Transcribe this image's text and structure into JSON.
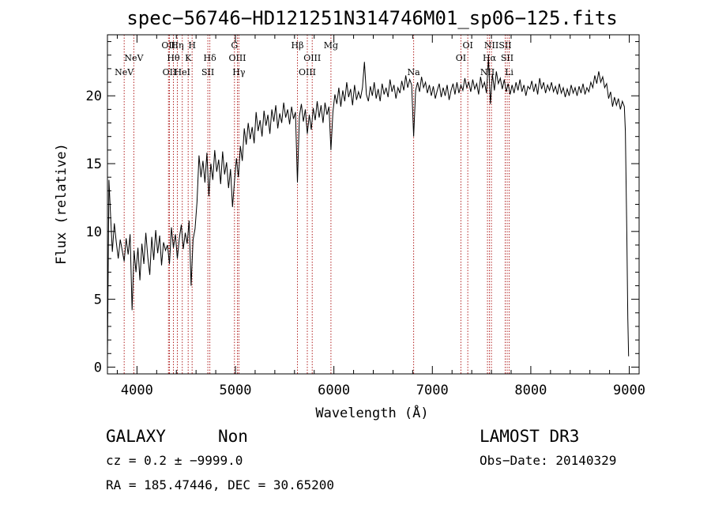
{
  "chart_data": {
    "type": "line",
    "title": "spec−56746−HD121251N314746M01_sp06−125.fits",
    "xlabel": "Wavelength (Å)",
    "ylabel": "Flux (relative)",
    "xlim": [
      3700,
      9100
    ],
    "ylim": [
      -0.5,
      24.5
    ],
    "xticks": [
      4000,
      5000,
      6000,
      7000,
      8000,
      9000
    ],
    "xtick_labels": [
      "4000",
      "5000",
      "6000",
      "7000",
      "8000",
      "9000"
    ],
    "yticks": [
      0,
      5,
      10,
      15,
      20
    ],
    "ytick_labels": [
      "0",
      "5",
      "10",
      "15",
      "20"
    ],
    "grid": false,
    "series": [
      {
        "color": "#000000",
        "points": [
          [
            3700,
            0.5
          ],
          [
            3715,
            13.8
          ],
          [
            3730,
            11.5
          ],
          [
            3750,
            8.5
          ],
          [
            3770,
            10.6
          ],
          [
            3790,
            9.2
          ],
          [
            3810,
            8.0
          ],
          [
            3830,
            9.4
          ],
          [
            3850,
            8.6
          ],
          [
            3870,
            7.8
          ],
          [
            3890,
            9.5
          ],
          [
            3910,
            8.3
          ],
          [
            3930,
            9.8
          ],
          [
            3950,
            4.2
          ],
          [
            3970,
            8.6
          ],
          [
            3990,
            7.0
          ],
          [
            4010,
            8.8
          ],
          [
            4030,
            6.4
          ],
          [
            4050,
            9.1
          ],
          [
            4070,
            7.6
          ],
          [
            4090,
            9.9
          ],
          [
            4110,
            8.1
          ],
          [
            4130,
            6.8
          ],
          [
            4150,
            9.6
          ],
          [
            4170,
            7.9
          ],
          [
            4190,
            10.1
          ],
          [
            4210,
            8.4
          ],
          [
            4230,
            9.7
          ],
          [
            4250,
            7.5
          ],
          [
            4270,
            9.2
          ],
          [
            4290,
            8.6
          ],
          [
            4310,
            9.0
          ],
          [
            4330,
            7.6
          ],
          [
            4350,
            10.3
          ],
          [
            4370,
            8.8
          ],
          [
            4390,
            9.8
          ],
          [
            4410,
            8.0
          ],
          [
            4430,
            9.5
          ],
          [
            4450,
            10.5
          ],
          [
            4470,
            8.7
          ],
          [
            4490,
            9.9
          ],
          [
            4510,
            9.1
          ],
          [
            4530,
            10.8
          ],
          [
            4550,
            6.0
          ],
          [
            4570,
            9.4
          ],
          [
            4590,
            10.2
          ],
          [
            4610,
            12.2
          ],
          [
            4630,
            15.6
          ],
          [
            4650,
            14.0
          ],
          [
            4670,
            15.2
          ],
          [
            4690,
            13.6
          ],
          [
            4710,
            15.8
          ],
          [
            4730,
            12.6
          ],
          [
            4750,
            15.0
          ],
          [
            4770,
            13.8
          ],
          [
            4790,
            16.0
          ],
          [
            4810,
            14.4
          ],
          [
            4830,
            15.3
          ],
          [
            4850,
            13.5
          ],
          [
            4870,
            15.9
          ],
          [
            4890,
            14.2
          ],
          [
            4910,
            15.1
          ],
          [
            4930,
            13.2
          ],
          [
            4950,
            14.6
          ],
          [
            4970,
            11.8
          ],
          [
            4990,
            13.7
          ],
          [
            5010,
            15.4
          ],
          [
            5030,
            14.0
          ],
          [
            5050,
            16.3
          ],
          [
            5070,
            15.2
          ],
          [
            5090,
            17.6
          ],
          [
            5110,
            16.4
          ],
          [
            5130,
            18.0
          ],
          [
            5150,
            16.8
          ],
          [
            5170,
            17.7
          ],
          [
            5190,
            16.5
          ],
          [
            5210,
            18.8
          ],
          [
            5230,
            17.4
          ],
          [
            5250,
            18.2
          ],
          [
            5270,
            17.0
          ],
          [
            5290,
            18.9
          ],
          [
            5310,
            17.8
          ],
          [
            5330,
            18.6
          ],
          [
            5350,
            17.2
          ],
          [
            5370,
            19.0
          ],
          [
            5390,
            18.1
          ],
          [
            5410,
            19.3
          ],
          [
            5430,
            17.6
          ],
          [
            5450,
            18.7
          ],
          [
            5470,
            18.0
          ],
          [
            5490,
            19.5
          ],
          [
            5510,
            18.4
          ],
          [
            5530,
            19.0
          ],
          [
            5550,
            17.9
          ],
          [
            5570,
            19.2
          ],
          [
            5590,
            18.3
          ],
          [
            5610,
            18.8
          ],
          [
            5630,
            13.6
          ],
          [
            5650,
            18.5
          ],
          [
            5670,
            19.4
          ],
          [
            5690,
            18.1
          ],
          [
            5710,
            19.0
          ],
          [
            5730,
            17.2
          ],
          [
            5750,
            18.6
          ],
          [
            5770,
            17.5
          ],
          [
            5790,
            19.1
          ],
          [
            5810,
            18.2
          ],
          [
            5830,
            19.6
          ],
          [
            5850,
            18.4
          ],
          [
            5870,
            19.3
          ],
          [
            5890,
            18.0
          ],
          [
            5910,
            19.5
          ],
          [
            5930,
            18.6
          ],
          [
            5950,
            19.2
          ],
          [
            5970,
            16.0
          ],
          [
            5990,
            18.8
          ],
          [
            6010,
            20.1
          ],
          [
            6030,
            19.4
          ],
          [
            6050,
            20.6
          ],
          [
            6070,
            19.2
          ],
          [
            6090,
            20.4
          ],
          [
            6110,
            19.6
          ],
          [
            6130,
            21.0
          ],
          [
            6150,
            19.9
          ],
          [
            6170,
            20.5
          ],
          [
            6190,
            19.3
          ],
          [
            6210,
            20.8
          ],
          [
            6230,
            19.7
          ],
          [
            6250,
            20.3
          ],
          [
            6270,
            19.8
          ],
          [
            6290,
            20.6
          ],
          [
            6310,
            22.5
          ],
          [
            6330,
            20.1
          ],
          [
            6350,
            19.6
          ],
          [
            6370,
            20.7
          ],
          [
            6390,
            20.0
          ],
          [
            6410,
            21.0
          ],
          [
            6430,
            19.8
          ],
          [
            6450,
            20.5
          ],
          [
            6470,
            19.6
          ],
          [
            6490,
            20.9
          ],
          [
            6510,
            20.1
          ],
          [
            6530,
            20.6
          ],
          [
            6550,
            19.9
          ],
          [
            6570,
            21.2
          ],
          [
            6590,
            20.3
          ],
          [
            6610,
            20.8
          ],
          [
            6630,
            19.8
          ],
          [
            6650,
            20.6
          ],
          [
            6670,
            20.2
          ],
          [
            6690,
            21.1
          ],
          [
            6710,
            20.4
          ],
          [
            6730,
            21.5
          ],
          [
            6750,
            20.6
          ],
          [
            6770,
            21.2
          ],
          [
            6790,
            20.8
          ],
          [
            6810,
            17.0
          ],
          [
            6830,
            20.4
          ],
          [
            6850,
            21.0
          ],
          [
            6870,
            20.3
          ],
          [
            6890,
            21.4
          ],
          [
            6910,
            20.6
          ],
          [
            6930,
            21.0
          ],
          [
            6950,
            20.2
          ],
          [
            6970,
            20.8
          ],
          [
            6990,
            20.0
          ],
          [
            7010,
            20.7
          ],
          [
            7030,
            19.8
          ],
          [
            7050,
            20.4
          ],
          [
            7070,
            20.9
          ],
          [
            7090,
            19.9
          ],
          [
            7110,
            20.6
          ],
          [
            7130,
            20.0
          ],
          [
            7150,
            20.8
          ],
          [
            7170,
            19.7
          ],
          [
            7190,
            20.4
          ],
          [
            7210,
            20.9
          ],
          [
            7230,
            20.1
          ],
          [
            7250,
            21.0
          ],
          [
            7270,
            20.2
          ],
          [
            7290,
            20.8
          ],
          [
            7310,
            20.4
          ],
          [
            7330,
            21.3
          ],
          [
            7350,
            20.6
          ],
          [
            7370,
            21.0
          ],
          [
            7390,
            20.3
          ],
          [
            7410,
            21.2
          ],
          [
            7430,
            20.5
          ],
          [
            7450,
            20.9
          ],
          [
            7470,
            20.1
          ],
          [
            7490,
            21.4
          ],
          [
            7510,
            20.6
          ],
          [
            7530,
            21.0
          ],
          [
            7550,
            20.2
          ],
          [
            7570,
            22.8
          ],
          [
            7590,
            19.4
          ],
          [
            7610,
            21.6
          ],
          [
            7630,
            20.4
          ],
          [
            7650,
            21.8
          ],
          [
            7670,
            20.9
          ],
          [
            7690,
            21.3
          ],
          [
            7710,
            20.5
          ],
          [
            7730,
            21.2
          ],
          [
            7750,
            20.3
          ],
          [
            7770,
            20.9
          ],
          [
            7790,
            20.1
          ],
          [
            7810,
            20.8
          ],
          [
            7830,
            20.2
          ],
          [
            7850,
            21.0
          ],
          [
            7870,
            20.4
          ],
          [
            7890,
            21.2
          ],
          [
            7910,
            20.3
          ],
          [
            7930,
            20.8
          ],
          [
            7950,
            20.0
          ],
          [
            7970,
            20.7
          ],
          [
            7990,
            20.5
          ],
          [
            8010,
            21.1
          ],
          [
            8030,
            20.3
          ],
          [
            8050,
            20.9
          ],
          [
            8070,
            20.1
          ],
          [
            8090,
            21.3
          ],
          [
            8110,
            20.5
          ],
          [
            8130,
            21.0
          ],
          [
            8150,
            20.2
          ],
          [
            8170,
            20.8
          ],
          [
            8190,
            20.4
          ],
          [
            8210,
            21.0
          ],
          [
            8230,
            20.3
          ],
          [
            8250,
            20.7
          ],
          [
            8270,
            20.1
          ],
          [
            8290,
            20.9
          ],
          [
            8310,
            20.2
          ],
          [
            8330,
            20.6
          ],
          [
            8350,
            19.9
          ],
          [
            8370,
            20.5
          ],
          [
            8390,
            20.0
          ],
          [
            8410,
            20.8
          ],
          [
            8430,
            20.2
          ],
          [
            8450,
            20.6
          ],
          [
            8470,
            20.0
          ],
          [
            8490,
            20.7
          ],
          [
            8510,
            20.2
          ],
          [
            8530,
            20.9
          ],
          [
            8550,
            20.1
          ],
          [
            8570,
            20.6
          ],
          [
            8590,
            20.3
          ],
          [
            8610,
            21.0
          ],
          [
            8630,
            20.6
          ],
          [
            8650,
            21.5
          ],
          [
            8670,
            20.9
          ],
          [
            8690,
            21.8
          ],
          [
            8710,
            21.0
          ],
          [
            8730,
            21.4
          ],
          [
            8750,
            20.6
          ],
          [
            8770,
            20.9
          ],
          [
            8790,
            19.8
          ],
          [
            8810,
            20.3
          ],
          [
            8830,
            19.2
          ],
          [
            8850,
            19.9
          ],
          [
            8870,
            19.3
          ],
          [
            8890,
            19.8
          ],
          [
            8910,
            19.0
          ],
          [
            8930,
            19.6
          ],
          [
            8950,
            19.2
          ],
          [
            8960,
            17.4
          ],
          [
            8975,
            10.0
          ],
          [
            8985,
            3.6
          ],
          [
            8993,
            0.8
          ]
        ]
      }
    ],
    "lines": [
      {
        "label": "NeV",
        "x": 3870,
        "row": 2
      },
      {
        "label": "NeV",
        "x": 3968,
        "row": 1
      },
      {
        "label": "OII",
        "x": 4320,
        "row": 0
      },
      {
        "label": "OII",
        "x": 4330,
        "row": 2
      },
      {
        "label": "Hθ",
        "x": 4370,
        "row": 1
      },
      {
        "label": "Hη",
        "x": 4410,
        "row": 0
      },
      {
        "label": "HeI",
        "x": 4460,
        "row": 2
      },
      {
        "label": "K",
        "x": 4520,
        "row": 1
      },
      {
        "label": "H",
        "x": 4560,
        "row": 0
      },
      {
        "label": "SII",
        "x": 4720,
        "row": 2
      },
      {
        "label": "Hδ",
        "x": 4740,
        "row": 1
      },
      {
        "label": "G",
        "x": 4990,
        "row": 0
      },
      {
        "label": "OIII",
        "x": 5020,
        "row": 1
      },
      {
        "label": "Hγ",
        "x": 5035,
        "row": 2
      },
      {
        "label": "Hβ",
        "x": 5630,
        "row": 0
      },
      {
        "label": "OIII",
        "x": 5730,
        "row": 2
      },
      {
        "label": "OIII",
        "x": 5780,
        "row": 1
      },
      {
        "label": "Mg",
        "x": 5970,
        "row": 0
      },
      {
        "label": "Na",
        "x": 6810,
        "row": 2
      },
      {
        "label": "OI",
        "x": 7290,
        "row": 1
      },
      {
        "label": "OI",
        "x": 7360,
        "row": 0
      },
      {
        "label": "NII",
        "x": 7560,
        "row": 2
      },
      {
        "label": "Hα",
        "x": 7580,
        "row": 1
      },
      {
        "label": "NII",
        "x": 7600,
        "row": 0
      },
      {
        "label": "SII",
        "x": 7740,
        "row": 0
      },
      {
        "label": "SII",
        "x": 7760,
        "row": 1
      },
      {
        "label": "Li",
        "x": 7780,
        "row": 2
      }
    ],
    "line_color": "#b22222"
  },
  "info": {
    "class": "GALAXY",
    "subclass": "Non",
    "survey": "LAMOST DR3",
    "cz": "cz = 0.2 ± −9999.0",
    "obs_date": "Obs−Date: 20140329",
    "radec": "RA = 185.47446, DEC =  30.65200"
  }
}
